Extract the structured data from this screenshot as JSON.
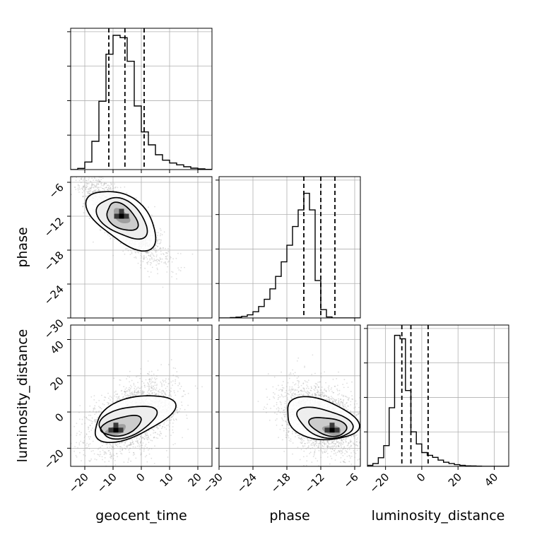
{
  "chart_data": {
    "type": "corner",
    "parameters": [
      "geocent_time",
      "phase",
      "luminosity_distance"
    ],
    "ranges": {
      "geocent_time": [
        -25,
        25
      ],
      "phase": [
        -30,
        -5
      ],
      "luminosity_distance": [
        -30,
        48
      ]
    },
    "ticks": {
      "geocent_time": [
        -20,
        -10,
        0,
        10,
        20
      ],
      "phase": [
        -30,
        -24,
        -18,
        -12,
        -6
      ],
      "luminosity_distance": [
        -20,
        0,
        20,
        40
      ]
    },
    "tick_labels": {
      "geocent_time": [
        "−20",
        "−10",
        "0",
        "10",
        "20"
      ],
      "phase": [
        "−30",
        "−24",
        "−18",
        "−12",
        "−6"
      ],
      "luminosity_distance": [
        "−20",
        "0",
        "20",
        "40"
      ]
    },
    "grid": true,
    "histograms": {
      "geocent_time": {
        "bin_width": 2.5,
        "bins": [
          -25,
          25
        ],
        "counts": [
          0.0,
          0.5,
          3.2,
          12.0,
          29.0,
          49.0,
          57.0,
          56.0,
          46.0,
          27.0,
          16.0,
          10.5,
          6.3,
          4.0,
          2.8,
          2.0,
          1.2,
          0.6,
          0.3,
          0.1
        ],
        "quantiles": [
          -11.5,
          -5.8,
          1.0
        ],
        "ylim": [
          0,
          60
        ]
      },
      "phase": {
        "bin_width": 1.0,
        "bins": [
          -30,
          -5
        ],
        "counts": [
          0,
          0,
          0.2,
          0.4,
          0.8,
          1.5,
          3.0,
          5.5,
          9.0,
          14.0,
          20.0,
          27.0,
          35.0,
          44.0,
          52.0,
          60.0,
          52.0,
          18.0,
          4.0,
          0.5,
          0,
          0,
          0,
          0,
          0
        ],
        "quantiles": [
          -15.0,
          -12.0,
          -9.5
        ],
        "ylim": [
          0,
          68
        ]
      },
      "luminosity_distance": {
        "bin_width": 3.0,
        "bins": [
          -30,
          48
        ],
        "counts": [
          0.3,
          0.8,
          2.5,
          6.0,
          17.0,
          38.0,
          37.0,
          22.0,
          10.0,
          6.5,
          4.0,
          3.2,
          2.6,
          1.8,
          1.2,
          0.8,
          0.5,
          0.3,
          0.15,
          0.1,
          0.05,
          0.0,
          0.0,
          0.0,
          0.0,
          0.0
        ],
        "quantiles": [
          -11.0,
          -6.0,
          3.5
        ],
        "ylim": [
          0,
          41
        ]
      }
    },
    "scatter_2d": [
      {
        "x": "geocent_time",
        "y": "phase",
        "mean": [
          -6.5,
          -12.5
        ],
        "std": [
          6.8,
          3.6
        ],
        "correlation": -0.82,
        "n_points": 2500,
        "peak": [
          -7.0,
          -12.0
        ]
      },
      {
        "x": "geocent_time",
        "y": "luminosity_distance",
        "mean": [
          -3.0,
          -3.0
        ],
        "std": [
          7.5,
          9.5
        ],
        "correlation": 0.45,
        "n_points": 2500,
        "peak": [
          -9.0,
          -10.0
        ]
      },
      {
        "x": "phase",
        "y": "luminosity_distance",
        "mean": [
          -12.0,
          -4.0
        ],
        "std": [
          3.4,
          9.5
        ],
        "correlation": -0.3,
        "n_points": 2500,
        "peak": [
          -10.0,
          -10.0
        ]
      }
    ],
    "colors": {
      "points": "#a0a0a0",
      "hist_line": "#000000",
      "contour": "#000000",
      "quantile_line": "#000000",
      "grid": "#b0b0b0",
      "density_low": "#ffffff",
      "density_high": "#000000"
    }
  }
}
